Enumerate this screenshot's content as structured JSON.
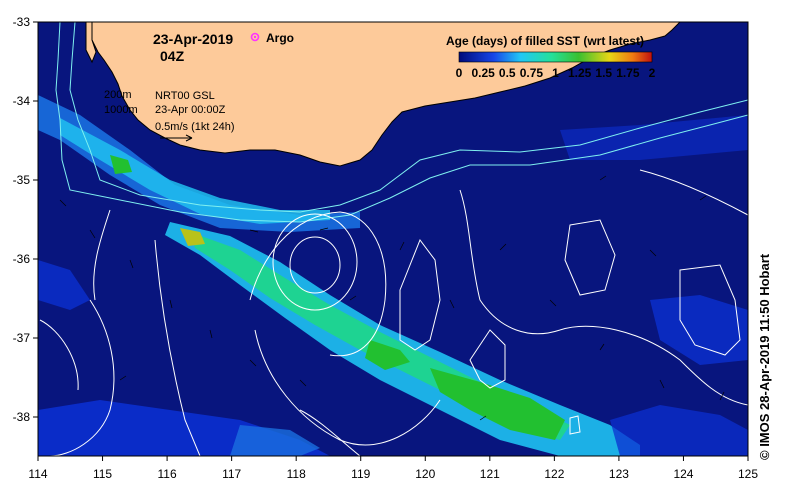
{
  "header": {
    "date": "23-Apr-2019",
    "time": "04Z",
    "argo_label": "Argo"
  },
  "legend": {
    "title": "Age (days) of filled SST (wrt latest)",
    "tick_labels": [
      "0",
      "0.25",
      "0.5",
      "0.75",
      "1",
      "1.25",
      "1.5",
      "1.75",
      "2"
    ]
  },
  "annotations": {
    "depth_200": "200m",
    "depth_1000": "1000m",
    "product": "NRT00 GSL",
    "analysis_time": "23-Apr 00:00Z",
    "vector_scale": "0.5m/s (1kt 24h)"
  },
  "axes": {
    "x_ticks": [
      "114",
      "115",
      "116",
      "117",
      "118",
      "119",
      "120",
      "121",
      "122",
      "123",
      "124",
      "125"
    ],
    "y_ticks": [
      "-33",
      "-34",
      "-35",
      "-36",
      "-37",
      "-38"
    ]
  },
  "credit": "© IMOS 28-Apr-2019 11:50 Hobart",
  "colors": {
    "land": "#fdca9a",
    "ocean": "#08157e",
    "age_0": "#0b2fd0",
    "age_0_4": "#1fc1f2",
    "age_1": "#1fd58d",
    "age_1_4": "#22c030",
    "age_1_8": "#b9c21a",
    "argo": "#ff33ff",
    "contour": "#ffffff",
    "isobath": "#7ff0f0"
  }
}
